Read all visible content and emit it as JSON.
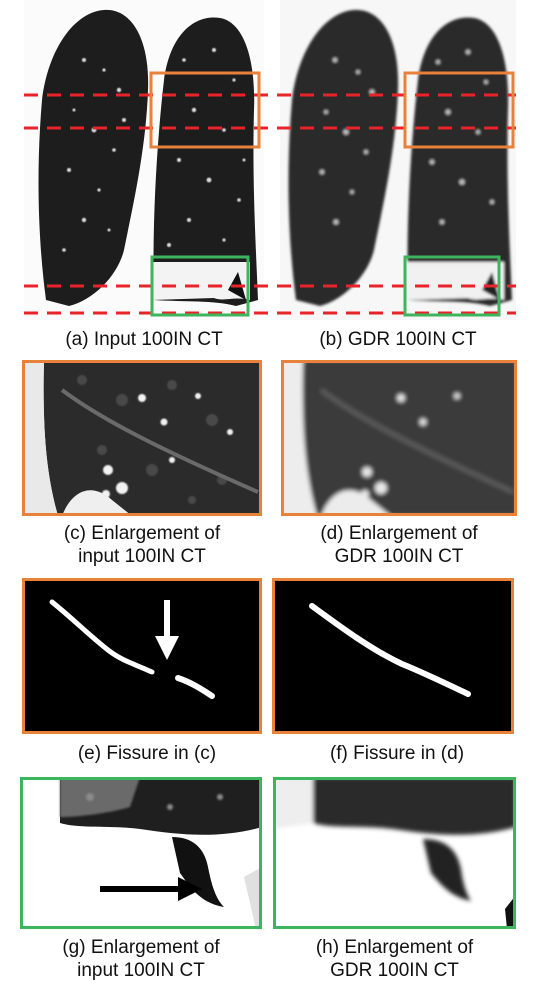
{
  "colors": {
    "orange": "#e8823a",
    "green": "#3cb55c",
    "red_dashed": "#e8232a",
    "arrow": "#000000"
  },
  "captions": {
    "a": "(a) Input 100IN CT",
    "b": "(b) GDR 100IN CT",
    "c_line1": "(c) Enlargement of",
    "c_line2": "input 100IN CT",
    "d_line1": "(d) Enlargement of",
    "d_line2": "GDR 100IN CT",
    "e": "(e) Fissure in (c)",
    "f": "(f) Fissure in (d)",
    "g_line1": "(g) Enlargement of",
    "g_line2": "input 100IN CT",
    "h_line1": "(h) Enlargement of",
    "h_line2": "GDR 100IN CT"
  }
}
